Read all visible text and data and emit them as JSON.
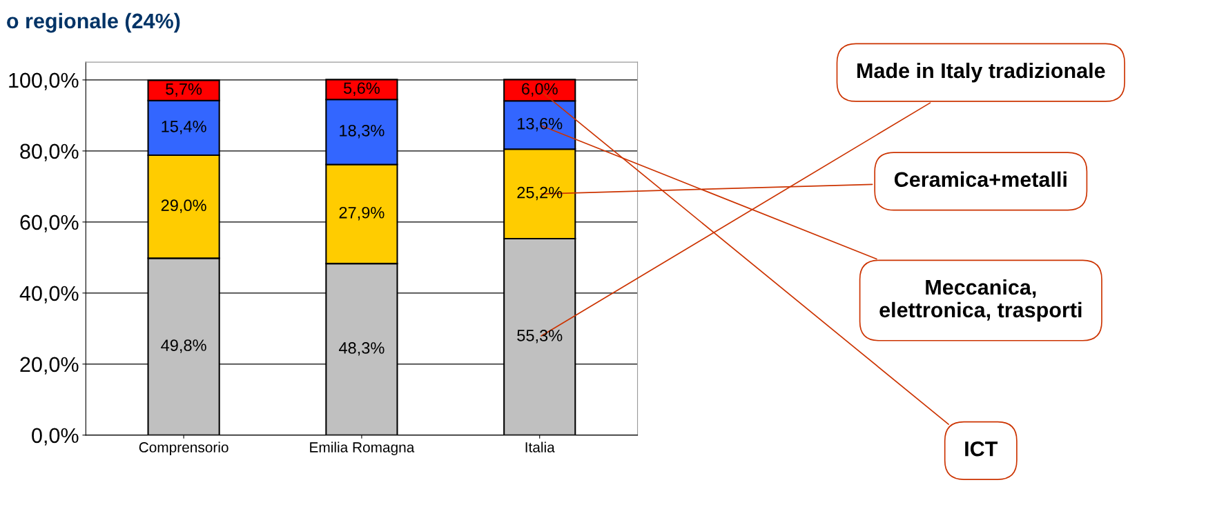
{
  "chart_data": {
    "type": "bar",
    "stacked": true,
    "title": "o regionale (24%)",
    "categories": [
      "Comprensorio",
      "Emilia Romagna",
      "Italia"
    ],
    "series": [
      {
        "name": "Made in Italy tradizionale",
        "color": "#c0c0c0",
        "values": [
          49.8,
          48.3,
          55.3
        ],
        "value_labels": [
          "49,8%",
          "48,3%",
          "55,3%"
        ]
      },
      {
        "name": "Ceramica+metalli",
        "color": "#ffcc00",
        "values": [
          29.0,
          27.9,
          25.2
        ],
        "value_labels": [
          "29,0%",
          "27,9%",
          "25,2%"
        ]
      },
      {
        "name": "Meccanica,\nelettronica, trasporti",
        "color": "#3366ff",
        "values": [
          15.4,
          18.3,
          13.6
        ],
        "value_labels": [
          "15,4%",
          "18,3%",
          "13,6%"
        ]
      },
      {
        "name": "ICT",
        "color": "#ff0000",
        "values": [
          5.7,
          5.6,
          6.0
        ],
        "value_labels": [
          "5,7%",
          "5,6%",
          "6,0%"
        ]
      }
    ],
    "ylim": [
      0,
      105
    ],
    "yticks": [
      {
        "value": 0,
        "label": "0,0%"
      },
      {
        "value": 20,
        "label": "20,0%"
      },
      {
        "value": 40,
        "label": "40,0%"
      },
      {
        "value": 60,
        "label": "60,0%"
      },
      {
        "value": 80,
        "label": "80,0%"
      },
      {
        "value": 100,
        "label": "100,0%"
      }
    ],
    "grid": "y",
    "legend": false
  }
}
